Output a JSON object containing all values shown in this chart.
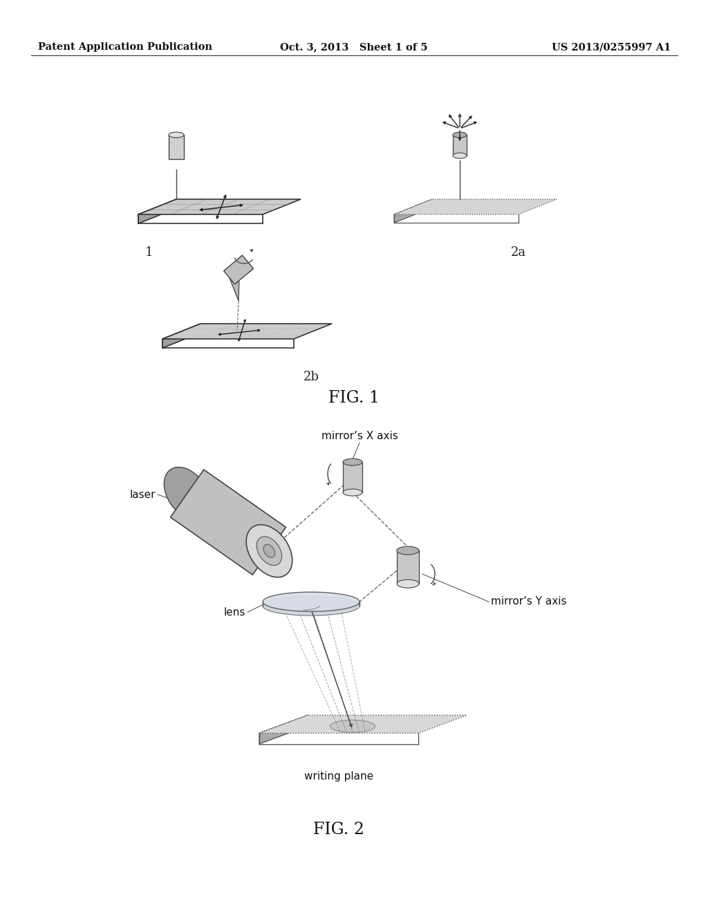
{
  "background_color": "#ffffff",
  "header_left": "Patent Application Publication",
  "header_center": "Oct. 3, 2013   Sheet 1 of 5",
  "header_right": "US 2013/0255997 A1",
  "header_fontsize": 10.5,
  "fig1_label": "FIG. 1",
  "fig2_label": "FIG. 2",
  "label1": "1",
  "label2a": "2a",
  "label2b": "2b",
  "fig_width": 10.24,
  "fig_height": 13.2,
  "dpi": 100
}
